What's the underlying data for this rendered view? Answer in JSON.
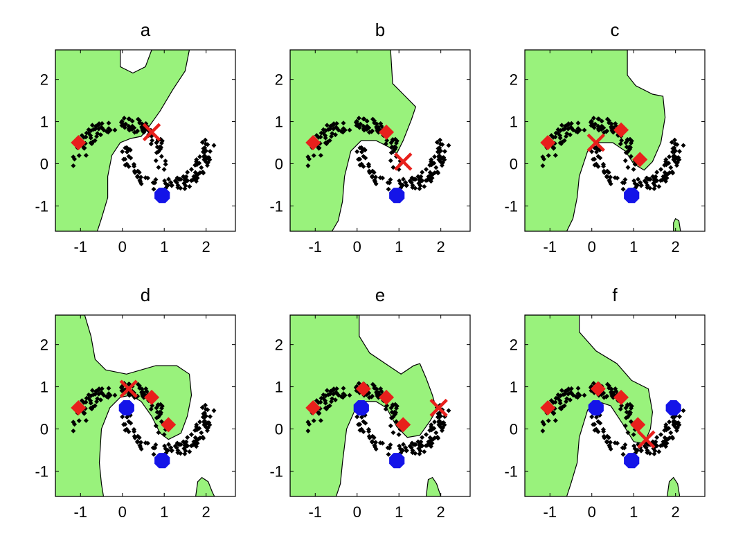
{
  "chart_data": [
    {
      "type": "scatter",
      "title": "a",
      "xlim": [
        -1.6,
        2.7
      ],
      "ylim": [
        -1.6,
        2.7
      ],
      "xticks": [
        -1,
        0,
        1,
        2
      ],
      "yticks": [
        -1,
        0,
        1,
        2
      ],
      "xtick_labels": [
        "-1",
        "0",
        "1",
        "2"
      ],
      "ytick_labels": [
        "-1",
        "0",
        "1",
        "2"
      ],
      "region_color": "#99f27c",
      "regions": [
        [
          [
            -1.6,
            2.7
          ],
          [
            -0.05,
            2.7
          ],
          [
            -0.05,
            2.3
          ],
          [
            0.25,
            2.15
          ],
          [
            0.55,
            2.3
          ],
          [
            0.7,
            2.7
          ],
          [
            1.6,
            2.7
          ],
          [
            1.5,
            2.2
          ],
          [
            1.2,
            1.75
          ],
          [
            0.9,
            1.25
          ],
          [
            0.65,
            0.9
          ],
          [
            0.45,
            0.65
          ],
          [
            0.2,
            0.6
          ],
          [
            -0.05,
            0.5
          ],
          [
            -0.25,
            0.2
          ],
          [
            -0.35,
            -0.3
          ],
          [
            -0.35,
            -0.8
          ],
          [
            -0.5,
            -1.3
          ],
          [
            -0.6,
            -1.6
          ],
          [
            -1.6,
            -1.6
          ]
        ]
      ],
      "labeled_class_a": [
        [
          -1.05,
          0.5
        ]
      ],
      "labeled_class_b": [
        [
          0.95,
          -0.75
        ]
      ],
      "query": [
        0.7,
        0.75
      ]
    },
    {
      "type": "scatter",
      "title": "b",
      "xlim": [
        -1.6,
        2.7
      ],
      "ylim": [
        -1.6,
        2.7
      ],
      "xticks": [
        -1,
        0,
        1,
        2
      ],
      "yticks": [
        -1,
        0,
        1,
        2
      ],
      "xtick_labels": [
        "-1",
        "0",
        "1",
        "2"
      ],
      "ytick_labels": [
        "-1",
        "0",
        "1",
        "2"
      ],
      "region_color": "#99f27c",
      "regions": [
        [
          [
            -1.6,
            2.7
          ],
          [
            0.8,
            2.7
          ],
          [
            0.85,
            1.9
          ],
          [
            1.1,
            1.65
          ],
          [
            1.4,
            1.35
          ],
          [
            1.3,
            1.05
          ],
          [
            1.1,
            0.55
          ],
          [
            0.95,
            0.25
          ],
          [
            0.75,
            0.4
          ],
          [
            0.45,
            0.55
          ],
          [
            0.1,
            0.55
          ],
          [
            -0.15,
            0.3
          ],
          [
            -0.3,
            -0.3
          ],
          [
            -0.35,
            -0.9
          ],
          [
            -0.45,
            -1.35
          ],
          [
            -0.6,
            -1.6
          ],
          [
            -1.6,
            -1.6
          ]
        ]
      ],
      "labeled_class_a": [
        [
          -1.05,
          0.5
        ],
        [
          0.7,
          0.75
        ]
      ],
      "labeled_class_b": [
        [
          0.95,
          -0.75
        ]
      ],
      "query": [
        1.1,
        0.05
      ]
    },
    {
      "type": "scatter",
      "title": "c",
      "xlim": [
        -1.6,
        2.7
      ],
      "ylim": [
        -1.6,
        2.7
      ],
      "xticks": [
        -1,
        0,
        1,
        2
      ],
      "yticks": [
        -1,
        0,
        1,
        2
      ],
      "xtick_labels": [
        "-1",
        "0",
        "1",
        "2"
      ],
      "ytick_labels": [
        "-1",
        "0",
        "1",
        "2"
      ],
      "region_color": "#99f27c",
      "regions": [
        [
          [
            -1.6,
            2.7
          ],
          [
            0.85,
            2.7
          ],
          [
            0.85,
            2.1
          ],
          [
            1.05,
            1.85
          ],
          [
            1.45,
            1.65
          ],
          [
            1.7,
            1.6
          ],
          [
            1.75,
            1.1
          ],
          [
            1.65,
            0.5
          ],
          [
            1.45,
            0.05
          ],
          [
            1.25,
            -0.15
          ],
          [
            1.0,
            0.0
          ],
          [
            0.8,
            0.3
          ],
          [
            0.5,
            0.5
          ],
          [
            0.15,
            0.5
          ],
          [
            -0.1,
            0.3
          ],
          [
            -0.3,
            -0.3
          ],
          [
            -0.35,
            -0.8
          ],
          [
            -0.45,
            -1.3
          ],
          [
            -0.6,
            -1.6
          ],
          [
            -1.6,
            -1.6
          ]
        ],
        [
          [
            1.95,
            -1.6
          ],
          [
            1.95,
            -1.4
          ],
          [
            2.0,
            -1.3
          ],
          [
            2.08,
            -1.35
          ],
          [
            2.12,
            -1.6
          ]
        ]
      ],
      "labeled_class_a": [
        [
          -1.05,
          0.5
        ],
        [
          0.7,
          0.8
        ],
        [
          1.15,
          0.1
        ]
      ],
      "labeled_class_b": [
        [
          0.95,
          -0.75
        ]
      ],
      "query": [
        0.1,
        0.5
      ]
    },
    {
      "type": "scatter",
      "title": "d",
      "xlim": [
        -1.6,
        2.7
      ],
      "ylim": [
        -1.6,
        2.7
      ],
      "xticks": [
        -1,
        0,
        1,
        2
      ],
      "yticks": [
        -1,
        0,
        1,
        2
      ],
      "xtick_labels": [
        "-1",
        "0",
        "1",
        "2"
      ],
      "ytick_labels": [
        "-1",
        "0",
        "1",
        "2"
      ],
      "region_color": "#99f27c",
      "regions": [
        [
          [
            -1.6,
            2.7
          ],
          [
            -0.9,
            2.7
          ],
          [
            -0.75,
            2.2
          ],
          [
            -0.65,
            1.65
          ],
          [
            -0.4,
            1.4
          ],
          [
            0.1,
            1.3
          ],
          [
            0.8,
            1.5
          ],
          [
            1.3,
            1.5
          ],
          [
            1.6,
            1.3
          ],
          [
            1.65,
            0.8
          ],
          [
            1.55,
            0.3
          ],
          [
            1.4,
            -0.1
          ],
          [
            1.1,
            -0.25
          ],
          [
            0.9,
            -0.1
          ],
          [
            0.7,
            0.3
          ],
          [
            0.45,
            0.65
          ],
          [
            0.2,
            0.8
          ],
          [
            -0.05,
            0.75
          ],
          [
            -0.3,
            0.5
          ],
          [
            -0.5,
            0.0
          ],
          [
            -0.55,
            -0.8
          ],
          [
            -0.5,
            -1.3
          ],
          [
            -0.45,
            -1.6
          ],
          [
            -1.6,
            -1.6
          ]
        ],
        [
          [
            1.75,
            -1.6
          ],
          [
            1.8,
            -1.25
          ],
          [
            1.9,
            -1.15
          ],
          [
            2.05,
            -1.25
          ],
          [
            2.15,
            -1.5
          ],
          [
            2.2,
            -1.6
          ]
        ]
      ],
      "labeled_class_a": [
        [
          -1.05,
          0.5
        ],
        [
          0.7,
          0.75
        ],
        [
          1.1,
          0.1
        ]
      ],
      "labeled_class_b": [
        [
          0.1,
          0.5
        ],
        [
          0.95,
          -0.75
        ]
      ],
      "query": [
        0.15,
        0.95
      ]
    },
    {
      "type": "scatter",
      "title": "e",
      "xlim": [
        -1.6,
        2.7
      ],
      "ylim": [
        -1.6,
        2.7
      ],
      "xticks": [
        -1,
        0,
        1,
        2
      ],
      "yticks": [
        -1,
        0,
        1,
        2
      ],
      "xtick_labels": [
        "-1",
        "0",
        "1",
        "2"
      ],
      "ytick_labels": [
        "-1",
        "0",
        "1",
        "2"
      ],
      "region_color": "#99f27c",
      "regions": [
        [
          [
            -1.6,
            2.7
          ],
          [
            0.05,
            2.7
          ],
          [
            0.05,
            2.2
          ],
          [
            0.3,
            1.8
          ],
          [
            0.75,
            1.5
          ],
          [
            1.05,
            1.3
          ],
          [
            1.35,
            1.5
          ],
          [
            1.5,
            1.55
          ],
          [
            1.65,
            1.2
          ],
          [
            1.8,
            0.8
          ],
          [
            1.9,
            0.45
          ],
          [
            1.75,
            0.2
          ],
          [
            1.5,
            -0.15
          ],
          [
            1.2,
            -0.2
          ],
          [
            0.95,
            0.05
          ],
          [
            0.7,
            0.5
          ],
          [
            0.45,
            0.65
          ],
          [
            0.2,
            0.65
          ],
          [
            -0.05,
            0.45
          ],
          [
            -0.25,
            0.0
          ],
          [
            -0.35,
            -0.8
          ],
          [
            -0.4,
            -1.3
          ],
          [
            -0.5,
            -1.6
          ],
          [
            -1.6,
            -1.6
          ]
        ],
        [
          [
            1.65,
            -1.6
          ],
          [
            1.7,
            -1.2
          ],
          [
            1.8,
            -1.15
          ],
          [
            1.9,
            -1.3
          ],
          [
            2.0,
            -1.6
          ]
        ]
      ],
      "labeled_class_a": [
        [
          -1.05,
          0.5
        ],
        [
          0.15,
          0.95
        ],
        [
          0.7,
          0.75
        ],
        [
          1.1,
          0.1
        ]
      ],
      "labeled_class_b": [
        [
          0.1,
          0.5
        ],
        [
          0.95,
          -0.75
        ]
      ],
      "query": [
        1.95,
        0.5
      ]
    },
    {
      "type": "scatter",
      "title": "f",
      "xlim": [
        -1.6,
        2.7
      ],
      "ylim": [
        -1.6,
        2.7
      ],
      "xticks": [
        -1,
        0,
        1,
        2
      ],
      "yticks": [
        -1,
        0,
        1,
        2
      ],
      "xtick_labels": [
        "-1",
        "0",
        "1",
        "2"
      ],
      "ytick_labels": [
        "-1",
        "0",
        "1",
        "2"
      ],
      "region_color": "#99f27c",
      "regions": [
        [
          [
            -1.6,
            2.7
          ],
          [
            -0.3,
            2.7
          ],
          [
            -0.3,
            2.3
          ],
          [
            0.1,
            1.85
          ],
          [
            0.6,
            1.55
          ],
          [
            0.95,
            1.15
          ],
          [
            1.35,
            0.95
          ],
          [
            1.45,
            0.4
          ],
          [
            1.4,
            0.0
          ],
          [
            1.25,
            -0.35
          ],
          [
            1.0,
            -0.3
          ],
          [
            0.75,
            0.1
          ],
          [
            0.45,
            0.55
          ],
          [
            0.15,
            0.65
          ],
          [
            -0.1,
            0.45
          ],
          [
            -0.3,
            -0.2
          ],
          [
            -0.35,
            -0.8
          ],
          [
            -0.5,
            -1.3
          ],
          [
            -0.6,
            -1.6
          ],
          [
            -1.6,
            -1.6
          ]
        ],
        [
          [
            1.8,
            -1.6
          ],
          [
            1.85,
            -1.25
          ],
          [
            1.95,
            -1.15
          ],
          [
            2.05,
            -1.3
          ],
          [
            2.1,
            -1.6
          ]
        ]
      ],
      "labeled_class_a": [
        [
          -1.05,
          0.5
        ],
        [
          0.15,
          0.95
        ],
        [
          0.7,
          0.75
        ],
        [
          1.1,
          0.1
        ]
      ],
      "labeled_class_b": [
        [
          0.1,
          0.5
        ],
        [
          0.95,
          -0.75
        ],
        [
          1.95,
          0.5
        ]
      ],
      "query": [
        1.3,
        -0.25
      ]
    }
  ],
  "colors": {
    "region": "#99f27c",
    "unlabeled_points": "#000000",
    "class_a_marker": "#e8201c",
    "class_b_marker": "#1414e8",
    "query_marker": "#e8201c",
    "axes": "#000000",
    "background": "#ffffff"
  }
}
